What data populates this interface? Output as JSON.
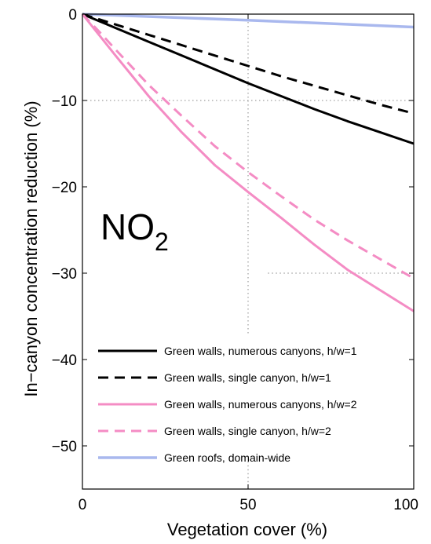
{
  "chart_data": {
    "type": "line",
    "title": "",
    "xlabel": "Vegetation cover (%)",
    "ylabel": "In−canyon concentration reduction (%)",
    "xlim": [
      0,
      100
    ],
    "ylim": [
      -55,
      0
    ],
    "xticks": [
      0,
      50,
      100
    ],
    "xtick_labels": [
      "0",
      "50",
      "100"
    ],
    "yticks": [
      0,
      -10,
      -20,
      -30,
      -40,
      -50
    ],
    "ytick_labels": [
      "0",
      "−10",
      "−20",
      "−30",
      "−40",
      "−50"
    ],
    "grid": "dotted, partial (x=50 and y=-10, -30)",
    "legend_position": "bottom-left",
    "annotation": {
      "main": "NO",
      "sub": "2"
    },
    "series": [
      {
        "name": "Green walls, numerous canyons, h/w=1",
        "color": "#000000",
        "dash": "solid",
        "x": [
          0,
          10,
          20,
          30,
          40,
          50,
          60,
          70,
          80,
          90,
          100
        ],
        "y": [
          0,
          -1.6,
          -3.2,
          -4.8,
          -6.4,
          -8.0,
          -9.5,
          -11.0,
          -12.4,
          -13.7,
          -15.0
        ]
      },
      {
        "name": "Green walls, single canyon, h/w=1",
        "color": "#000000",
        "dash": "dashed",
        "x": [
          0,
          10,
          20,
          30,
          40,
          50,
          60,
          70,
          80,
          90,
          100
        ],
        "y": [
          0,
          -1.2,
          -2.4,
          -3.6,
          -4.8,
          -6.0,
          -7.2,
          -8.3,
          -9.4,
          -10.5,
          -11.5
        ]
      },
      {
        "name": "Green walls, numerous canyons, h/w=2",
        "color": "#f48cc4",
        "dash": "solid",
        "x": [
          0,
          5,
          10,
          20,
          30,
          40,
          50,
          60,
          70,
          80,
          90,
          100
        ],
        "y": [
          0,
          -2.4,
          -4.8,
          -9.5,
          -13.7,
          -17.5,
          -20.6,
          -23.6,
          -26.7,
          -29.6,
          -32.0,
          -34.4
        ]
      },
      {
        "name": "Green walls, single canyon, h/w=2",
        "color": "#f48cc4",
        "dash": "dashed",
        "x": [
          0,
          5,
          10,
          20,
          30,
          40,
          50,
          60,
          70,
          80,
          90,
          100
        ],
        "y": [
          0,
          -2.0,
          -4.1,
          -8.2,
          -11.8,
          -15.3,
          -18.3,
          -21.1,
          -23.8,
          -26.2,
          -28.4,
          -30.6
        ]
      },
      {
        "name": "Green roofs, domain-wide",
        "color": "#a9b8ee",
        "dash": "solid",
        "x": [
          0,
          50,
          100
        ],
        "y": [
          0,
          -0.7,
          -1.5
        ]
      }
    ]
  }
}
